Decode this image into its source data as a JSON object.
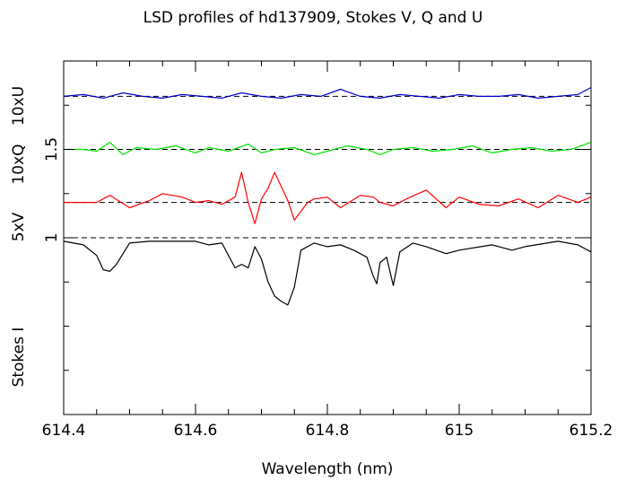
{
  "chart_data": {
    "type": "line",
    "title": "LSD profiles of hd137909, Stokes V, Q and U",
    "xlabel": "Wavelength (nm)",
    "ylabel_segments": [
      "Stokes I",
      "5xV",
      "10xQ",
      "10xU"
    ],
    "xlim": [
      614.4,
      615.2
    ],
    "ylim": [
      0.0,
      2.0
    ],
    "x_ticks": [
      614.4,
      614.6,
      614.8,
      615,
      615.2
    ],
    "x_tick_labels": [
      "614.4",
      "614.6",
      "614.8",
      "615",
      "615.2"
    ],
    "y_ticks": [
      1,
      1.5
    ],
    "y_tick_labels": [
      "1",
      "1.5"
    ],
    "reference_lines": [
      1.0,
      1.2,
      1.5,
      1.8
    ],
    "series": [
      {
        "color": "#000000",
        "x": [
          614.4,
          614.43,
          614.45,
          614.46,
          614.47,
          614.48,
          614.5,
          614.53,
          614.58,
          614.6,
          614.62,
          614.64,
          614.66,
          614.67,
          614.68,
          614.69,
          614.7,
          614.71,
          614.72,
          614.73,
          614.74,
          614.75,
          614.76,
          614.78,
          614.8,
          614.82,
          614.84,
          614.86,
          614.87,
          614.875,
          614.88,
          614.89,
          614.9,
          614.91,
          614.93,
          614.95,
          614.98,
          615.0,
          615.05,
          615.08,
          615.1,
          615.15,
          615.18,
          615.2
        ],
        "y": [
          0.98,
          0.96,
          0.9,
          0.82,
          0.81,
          0.85,
          0.97,
          0.98,
          0.98,
          0.98,
          0.96,
          0.97,
          0.83,
          0.85,
          0.83,
          0.95,
          0.88,
          0.75,
          0.67,
          0.64,
          0.62,
          0.72,
          0.93,
          0.97,
          0.95,
          0.96,
          0.93,
          0.89,
          0.78,
          0.74,
          0.86,
          0.89,
          0.73,
          0.92,
          0.97,
          0.95,
          0.91,
          0.93,
          0.96,
          0.93,
          0.95,
          0.98,
          0.96,
          0.92
        ]
      },
      {
        "color": "#ff0000",
        "x": [
          614.4,
          614.43,
          614.45,
          614.47,
          614.5,
          614.53,
          614.55,
          614.58,
          614.6,
          614.62,
          614.64,
          614.66,
          614.67,
          614.68,
          614.69,
          614.7,
          614.71,
          614.72,
          614.73,
          614.74,
          614.75,
          614.77,
          614.78,
          614.8,
          614.82,
          614.85,
          614.87,
          614.88,
          614.9,
          614.92,
          614.95,
          614.98,
          615.0,
          615.03,
          615.06,
          615.09,
          615.12,
          615.15,
          615.18,
          615.2
        ],
        "y": [
          1.2,
          1.2,
          1.2,
          1.24,
          1.17,
          1.21,
          1.25,
          1.23,
          1.2,
          1.21,
          1.19,
          1.23,
          1.37,
          1.2,
          1.08,
          1.22,
          1.28,
          1.37,
          1.29,
          1.21,
          1.1,
          1.2,
          1.22,
          1.23,
          1.17,
          1.24,
          1.23,
          1.2,
          1.18,
          1.22,
          1.27,
          1.17,
          1.23,
          1.19,
          1.18,
          1.22,
          1.17,
          1.24,
          1.2,
          1.23
        ]
      },
      {
        "color": "#00e000",
        "x": [
          614.4,
          614.43,
          614.45,
          614.47,
          614.49,
          614.51,
          614.54,
          614.57,
          614.6,
          614.62,
          614.65,
          614.68,
          614.7,
          614.72,
          614.75,
          614.78,
          614.8,
          614.83,
          614.86,
          614.88,
          614.9,
          614.93,
          614.96,
          614.99,
          615.02,
          615.05,
          615.08,
          615.11,
          615.14,
          615.17,
          615.2
        ],
        "y": [
          1.5,
          1.5,
          1.49,
          1.54,
          1.47,
          1.51,
          1.5,
          1.52,
          1.48,
          1.51,
          1.49,
          1.53,
          1.48,
          1.5,
          1.51,
          1.47,
          1.49,
          1.52,
          1.5,
          1.47,
          1.5,
          1.51,
          1.49,
          1.5,
          1.52,
          1.48,
          1.5,
          1.51,
          1.49,
          1.5,
          1.54
        ]
      },
      {
        "color": "#0000cc",
        "x": [
          614.4,
          614.43,
          614.46,
          614.49,
          614.52,
          614.55,
          614.58,
          614.61,
          614.64,
          614.67,
          614.7,
          614.73,
          614.76,
          614.79,
          614.82,
          614.85,
          614.88,
          614.91,
          614.94,
          614.97,
          615.0,
          615.03,
          615.06,
          615.09,
          615.12,
          615.15,
          615.18,
          615.2
        ],
        "y": [
          1.8,
          1.81,
          1.79,
          1.82,
          1.8,
          1.79,
          1.81,
          1.8,
          1.79,
          1.82,
          1.8,
          1.79,
          1.81,
          1.8,
          1.84,
          1.8,
          1.79,
          1.81,
          1.8,
          1.79,
          1.81,
          1.8,
          1.8,
          1.81,
          1.79,
          1.8,
          1.81,
          1.85
        ]
      }
    ]
  }
}
